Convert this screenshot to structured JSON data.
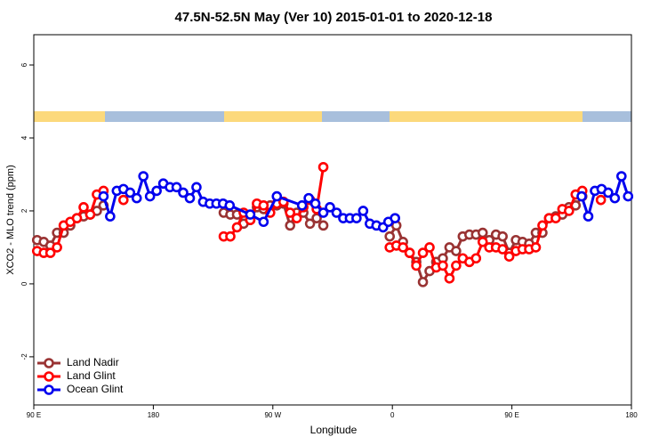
{
  "chart_data": {
    "type": "line",
    "title": "47.5N-52.5N May (Ver 10)   2015-01-01 to 2020-12-18",
    "x_label": "Longitude",
    "y_label": "XCO2 - MLO trend (ppm)",
    "xlim": [
      90,
      540
    ],
    "xticks": [
      {
        "value": 90,
        "label": "90 E"
      },
      {
        "value": 180,
        "label": "180"
      },
      {
        "value": 270,
        "label": "90 W"
      },
      {
        "value": 360,
        "label": "0"
      },
      {
        "value": 450,
        "label": "90 E"
      },
      {
        "value": 540,
        "label": "180"
      }
    ],
    "ylim": [
      -3.32,
      6.83
    ],
    "yticks": [
      -2,
      0,
      2,
      4,
      6
    ],
    "legend": "bottom-left",
    "series": [
      {
        "name": "Land Nadir",
        "color": "#993333",
        "x": [
          92.5,
          97.5,
          102.5,
          107.5,
          112.5,
          117.5,
          122.5,
          127.5,
          132.5,
          137.5,
          142.5,
          null,
          233,
          238,
          243,
          248,
          253,
          258,
          263,
          268,
          273,
          278,
          283,
          288,
          293,
          298,
          303,
          308,
          null,
          358,
          363,
          368,
          373,
          378,
          383,
          388,
          393,
          398,
          403,
          408,
          413,
          418,
          423,
          428,
          433,
          438,
          443,
          448,
          453,
          458,
          463,
          468,
          473,
          478,
          483,
          488,
          493,
          498,
          503
        ],
        "values": [
          1.2,
          1.15,
          1.05,
          1.4,
          1.4,
          1.6,
          1.8,
          1.85,
          1.9,
          2.0,
          2.15,
          null,
          1.95,
          1.9,
          1.9,
          1.65,
          1.75,
          2.1,
          2.05,
          2.15,
          2.15,
          2.2,
          1.6,
          1.95,
          1.95,
          1.65,
          1.8,
          1.6,
          null,
          1.3,
          1.6,
          1.15,
          0.85,
          0.6,
          0.05,
          0.35,
          0.6,
          0.7,
          1.0,
          0.9,
          1.3,
          1.35,
          1.35,
          1.4,
          1.2,
          1.35,
          1.3,
          0.85,
          1.2,
          1.15,
          1.1,
          1.4,
          1.4,
          1.8,
          1.85,
          1.9,
          2.1,
          2.15,
          2.4
        ]
      },
      {
        "name": "Land Glint",
        "color": "#ff0000",
        "x": [
          92.5,
          97.5,
          102.5,
          107.5,
          112.5,
          117.5,
          122.5,
          127.5,
          132.5,
          137.5,
          142.5,
          null,
          157.5,
          null,
          233,
          238,
          243,
          248,
          253,
          258,
          263,
          268,
          273,
          278,
          283,
          288,
          293,
          298,
          303,
          308,
          null,
          358,
          363,
          368,
          373,
          378,
          383,
          388,
          393,
          398,
          403,
          408,
          413,
          418,
          423,
          428,
          433,
          438,
          443,
          448,
          453,
          458,
          463,
          468,
          473,
          478,
          483,
          488,
          493,
          498,
          503,
          null,
          517
        ],
        "values": [
          0.9,
          0.85,
          0.85,
          1.0,
          1.6,
          1.7,
          1.8,
          2.1,
          1.9,
          2.45,
          2.55,
          null,
          2.3,
          null,
          1.3,
          1.3,
          1.55,
          1.95,
          1.75,
          2.2,
          2.15,
          1.95,
          2.2,
          2.25,
          1.95,
          1.8,
          2.1,
          2.3,
          2.05,
          3.2,
          null,
          1.0,
          1.05,
          1.0,
          0.85,
          0.5,
          0.85,
          1.0,
          0.45,
          0.5,
          0.15,
          0.5,
          0.7,
          0.6,
          0.7,
          1.15,
          1.0,
          1.0,
          0.95,
          0.75,
          0.9,
          0.95,
          0.95,
          1.0,
          1.6,
          1.8,
          1.8,
          2.05,
          2.0,
          2.45,
          2.55,
          null,
          2.3
        ]
      },
      {
        "name": "Ocean Glint",
        "color": "#0000ee",
        "x": [
          142.5,
          147.5,
          152.5,
          157.5,
          162.5,
          167.5,
          172.5,
          177.5,
          182.5,
          187.5,
          192.5,
          197.5,
          202.5,
          207.5,
          212.5,
          217.5,
          222.5,
          227.5,
          232.5,
          237.5,
          253,
          263,
          273,
          292,
          297,
          302,
          308,
          313,
          318,
          323,
          328,
          333,
          338,
          343,
          348,
          353,
          357,
          362,
          null,
          502.5,
          507.5,
          512.5,
          517.5,
          522.5,
          527.5,
          532.5,
          537.5
        ],
        "values": [
          2.4,
          1.85,
          2.55,
          2.6,
          2.5,
          2.35,
          2.95,
          2.4,
          2.55,
          2.75,
          2.65,
          2.65,
          2.5,
          2.35,
          2.65,
          2.25,
          2.2,
          2.2,
          2.2,
          2.15,
          1.9,
          1.7,
          2.4,
          2.15,
          2.35,
          2.2,
          1.95,
          2.1,
          1.95,
          1.8,
          1.8,
          1.8,
          2.0,
          1.65,
          1.6,
          1.55,
          1.7,
          1.8,
          null,
          2.4,
          1.85,
          2.55,
          2.6,
          2.5,
          2.35,
          2.95,
          2.4
        ]
      }
    ]
  }
}
